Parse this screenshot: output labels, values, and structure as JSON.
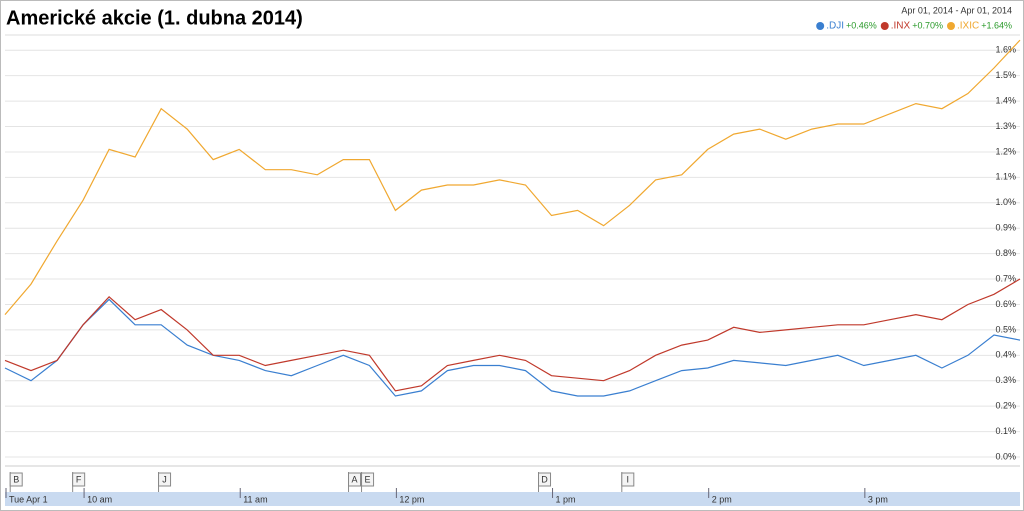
{
  "chart_data": {
    "type": "line",
    "title": "Americké akcie (1. dubna 2014)",
    "date_range": "Apr 01, 2014 - Apr 01, 2014",
    "x": [
      570,
      580,
      590,
      600,
      610,
      620,
      630,
      640,
      650,
      660,
      670,
      680,
      690,
      700,
      710,
      720,
      730,
      740,
      750,
      760,
      770,
      780,
      790,
      800,
      810,
      820,
      830,
      840,
      850,
      860,
      870,
      880,
      890,
      900,
      910,
      920,
      930,
      940,
      950,
      960
    ],
    "xlim": [
      570,
      960
    ],
    "xticks": [
      {
        "value": 570,
        "label": "Tue Apr 1"
      },
      {
        "value": 600,
        "label": "10 am"
      },
      {
        "value": 660,
        "label": "11 am"
      },
      {
        "value": 720,
        "label": "12 pm"
      },
      {
        "value": 780,
        "label": "1 pm"
      },
      {
        "value": 840,
        "label": "2 pm"
      },
      {
        "value": 900,
        "label": "3 pm"
      }
    ],
    "ylim": [
      0,
      1.66
    ],
    "yticks": [
      {
        "value": 0,
        "label": "0.0%"
      },
      {
        "value": 0.1,
        "label": "0.1%"
      },
      {
        "value": 0.2,
        "label": "0.2%"
      },
      {
        "value": 0.3,
        "label": "0.3%"
      },
      {
        "value": 0.4,
        "label": "0.4%"
      },
      {
        "value": 0.5,
        "label": "0.5%"
      },
      {
        "value": 0.6,
        "label": "0.6%"
      },
      {
        "value": 0.7,
        "label": "0.7%"
      },
      {
        "value": 0.8,
        "label": "0.8%"
      },
      {
        "value": 0.9,
        "label": "0.9%"
      },
      {
        "value": 1.0,
        "label": "1.0%"
      },
      {
        "value": 1.1,
        "label": "1.1%"
      },
      {
        "value": 1.2,
        "label": "1.2%"
      },
      {
        "value": 1.3,
        "label": "1.3%"
      },
      {
        "value": 1.4,
        "label": "1.4%"
      },
      {
        "value": 1.5,
        "label": "1.5%"
      },
      {
        "value": 1.6,
        "label": "1.6%"
      }
    ],
    "grid": true,
    "series": [
      {
        "name": ".DJI",
        "change_label": "+0.46%",
        "color": "#3a7fd0",
        "values": [
          0.35,
          0.3,
          0.38,
          0.52,
          0.62,
          0.52,
          0.52,
          0.44,
          0.4,
          0.38,
          0.34,
          0.32,
          0.36,
          0.4,
          0.36,
          0.24,
          0.26,
          0.34,
          0.36,
          0.36,
          0.34,
          0.26,
          0.24,
          0.24,
          0.26,
          0.3,
          0.34,
          0.35,
          0.38,
          0.37,
          0.36,
          0.38,
          0.4,
          0.36,
          0.38,
          0.4,
          0.35,
          0.4,
          0.48,
          0.46
        ]
      },
      {
        "name": ".INX",
        "change_label": "+0.70%",
        "color": "#c0392b",
        "values": [
          0.38,
          0.34,
          0.38,
          0.52,
          0.63,
          0.54,
          0.58,
          0.5,
          0.4,
          0.4,
          0.36,
          0.38,
          0.4,
          0.42,
          0.4,
          0.26,
          0.28,
          0.36,
          0.38,
          0.4,
          0.38,
          0.32,
          0.31,
          0.3,
          0.34,
          0.4,
          0.44,
          0.46,
          0.51,
          0.49,
          0.5,
          0.51,
          0.52,
          0.52,
          0.54,
          0.56,
          0.54,
          0.6,
          0.64,
          0.7
        ]
      },
      {
        "name": ".IXIC",
        "change_label": "+1.64%",
        "color": "#f0a830",
        "values": [
          0.56,
          0.68,
          0.85,
          1.01,
          1.21,
          1.18,
          1.37,
          1.29,
          1.17,
          1.21,
          1.13,
          1.13,
          1.11,
          1.17,
          1.17,
          0.97,
          1.05,
          1.07,
          1.07,
          1.09,
          1.07,
          0.95,
          0.97,
          0.91,
          0.99,
          1.09,
          1.11,
          1.21,
          1.27,
          1.29,
          1.25,
          1.29,
          1.31,
          1.31,
          1.35,
          1.39,
          1.37,
          1.43,
          1.53,
          1.64
        ]
      }
    ],
    "events": [
      {
        "x": 572,
        "label": "B"
      },
      {
        "x": 596,
        "label": "F"
      },
      {
        "x": 629,
        "label": "J"
      },
      {
        "x": 702,
        "label": "A"
      },
      {
        "x": 707,
        "label": "E"
      },
      {
        "x": 775,
        "label": "D"
      },
      {
        "x": 807,
        "label": "I"
      }
    ]
  }
}
